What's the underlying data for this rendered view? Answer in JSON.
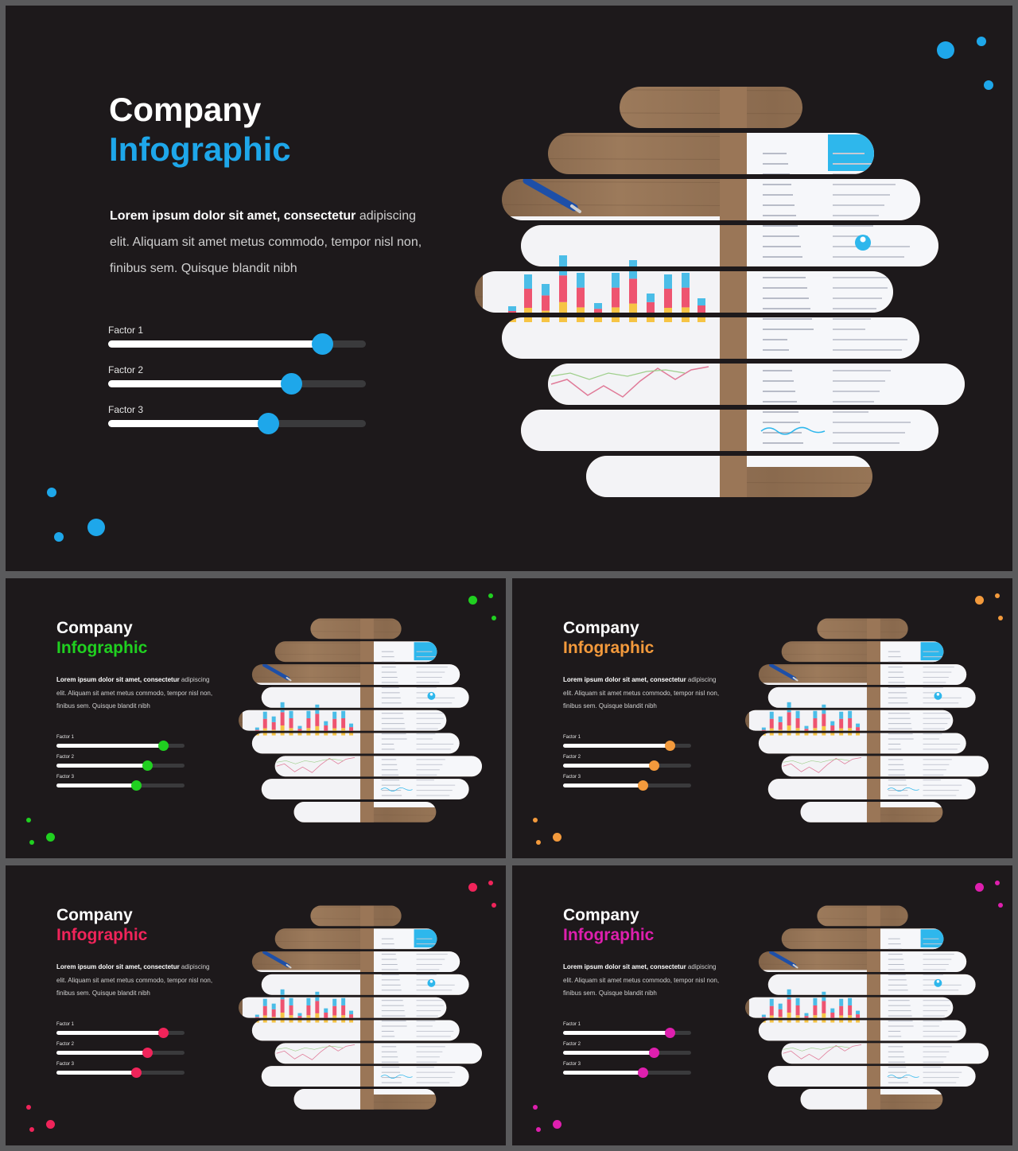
{
  "slides": [
    {
      "id": "main",
      "title_line1": "Company",
      "title_line2": "Infographic",
      "accent": "#1ea7ea",
      "body_bold": "Lorem ipsum dolor sit amet, consectetur",
      "body_rest": " adipiscing elit. Aliquam sit amet metus commodo, tempor nisl non, finibus sem. Quisque blandit nibh",
      "factors": [
        {
          "label": "Factor 1",
          "value": 0.83
        },
        {
          "label": "Factor 2",
          "value": 0.71
        },
        {
          "label": "Factor 3",
          "value": 0.62
        }
      ]
    },
    {
      "id": "green",
      "title_line1": "Company",
      "title_line2": "Infographic",
      "accent": "#20d020",
      "body_bold": "Lorem ipsum dolor sit amet, consectetur",
      "body_rest": " adipiscing elit. Aliquam sit amet metus commodo, tempor nisl non, finibus sem. Quisque blandit nibh",
      "factors": [
        {
          "label": "Factor 1",
          "value": 0.83
        },
        {
          "label": "Factor 2",
          "value": 0.71
        },
        {
          "label": "Factor 3",
          "value": 0.62
        }
      ]
    },
    {
      "id": "orange",
      "title_line1": "Company",
      "title_line2": "Infographic",
      "accent": "#f39a3c",
      "body_bold": "Lorem ipsum dolor sit amet, consectetur",
      "body_rest": " adipiscing elit. Aliquam sit amet metus commodo, tempor nisl non, finibus sem. Quisque blandit nibh",
      "factors": [
        {
          "label": "Factor 1",
          "value": 0.83
        },
        {
          "label": "Factor 2",
          "value": 0.71
        },
        {
          "label": "Factor 3",
          "value": 0.62
        }
      ]
    },
    {
      "id": "red",
      "title_line1": "Company",
      "title_line2": "Infographic",
      "accent": "#f0245a",
      "body_bold": "Lorem ipsum dolor sit amet, consectetur",
      "body_rest": " adipiscing elit. Aliquam sit amet metus commodo, tempor nisl non, finibus sem. Quisque blandit nibh",
      "factors": [
        {
          "label": "Factor 1",
          "value": 0.83
        },
        {
          "label": "Factor 2",
          "value": 0.71
        },
        {
          "label": "Factor 3",
          "value": 0.62
        }
      ]
    },
    {
      "id": "magenta",
      "title_line1": "Company",
      "title_line2": "Infographic",
      "accent": "#de1fae",
      "body_bold": "Lorem ipsum dolor sit amet, consectetur",
      "body_rest": " adipiscing elit. Aliquam sit amet metus commodo, tempor nisl non, finibus sem. Quisque blandit nibh",
      "factors": [
        {
          "label": "Factor 1",
          "value": 0.83
        },
        {
          "label": "Factor 2",
          "value": 0.71
        },
        {
          "label": "Factor 3",
          "value": 0.62
        }
      ]
    }
  ]
}
